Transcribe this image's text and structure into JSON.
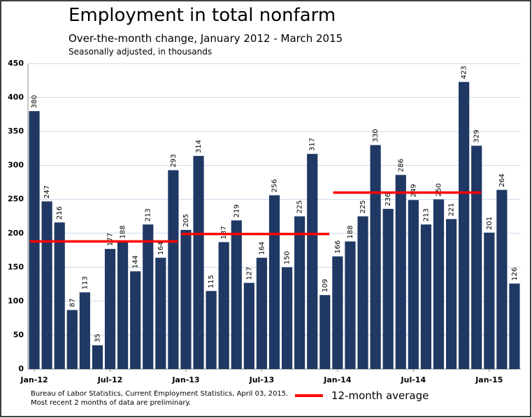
{
  "chart_data": {
    "type": "bar",
    "title": "Employment in total nonfarm",
    "subtitle": "Over-the-month change, January 2012 - March 2015",
    "note": "Seasonally adjusted, in thousands",
    "source": "Bureau of Labor Statistics, Current Employment Statistics, April 03, 2015.",
    "footnote": "Most recent 2 months of data are preliminary.",
    "categories": [
      "Jan-12",
      null,
      null,
      null,
      null,
      null,
      "Jul-12",
      null,
      null,
      null,
      null,
      null,
      "Jan-13",
      null,
      null,
      null,
      null,
      null,
      "Jul-13",
      null,
      null,
      null,
      null,
      null,
      "Jan-14",
      null,
      null,
      null,
      null,
      null,
      "Jul-14",
      null,
      null,
      null,
      null,
      null,
      "Jan-15",
      null,
      null
    ],
    "values": [
      380,
      247,
      216,
      87,
      113,
      35,
      177,
      188,
      144,
      213,
      164,
      293,
      205,
      314,
      115,
      187,
      219,
      127,
      164,
      256,
      150,
      225,
      317,
      109,
      166,
      188,
      225,
      330,
      236,
      286,
      249,
      213,
      250,
      221,
      423,
      329,
      201,
      264,
      126
    ],
    "color": "#1f3864",
    "average": {
      "name": "12-month average",
      "color": "#ff0000",
      "values": [
        188,
        188,
        188,
        188,
        188,
        188,
        188,
        188,
        188,
        188,
        188,
        188,
        199,
        199,
        199,
        199,
        199,
        199,
        199,
        199,
        199,
        199,
        199,
        199,
        260,
        260,
        260,
        260,
        260,
        260,
        260,
        260,
        260,
        260,
        260,
        260,
        null,
        null,
        null
      ]
    },
    "ylim": [
      0,
      450
    ],
    "yticks": [
      0,
      50,
      100,
      150,
      200,
      250,
      300,
      350,
      400,
      450
    ],
    "grid": true
  }
}
